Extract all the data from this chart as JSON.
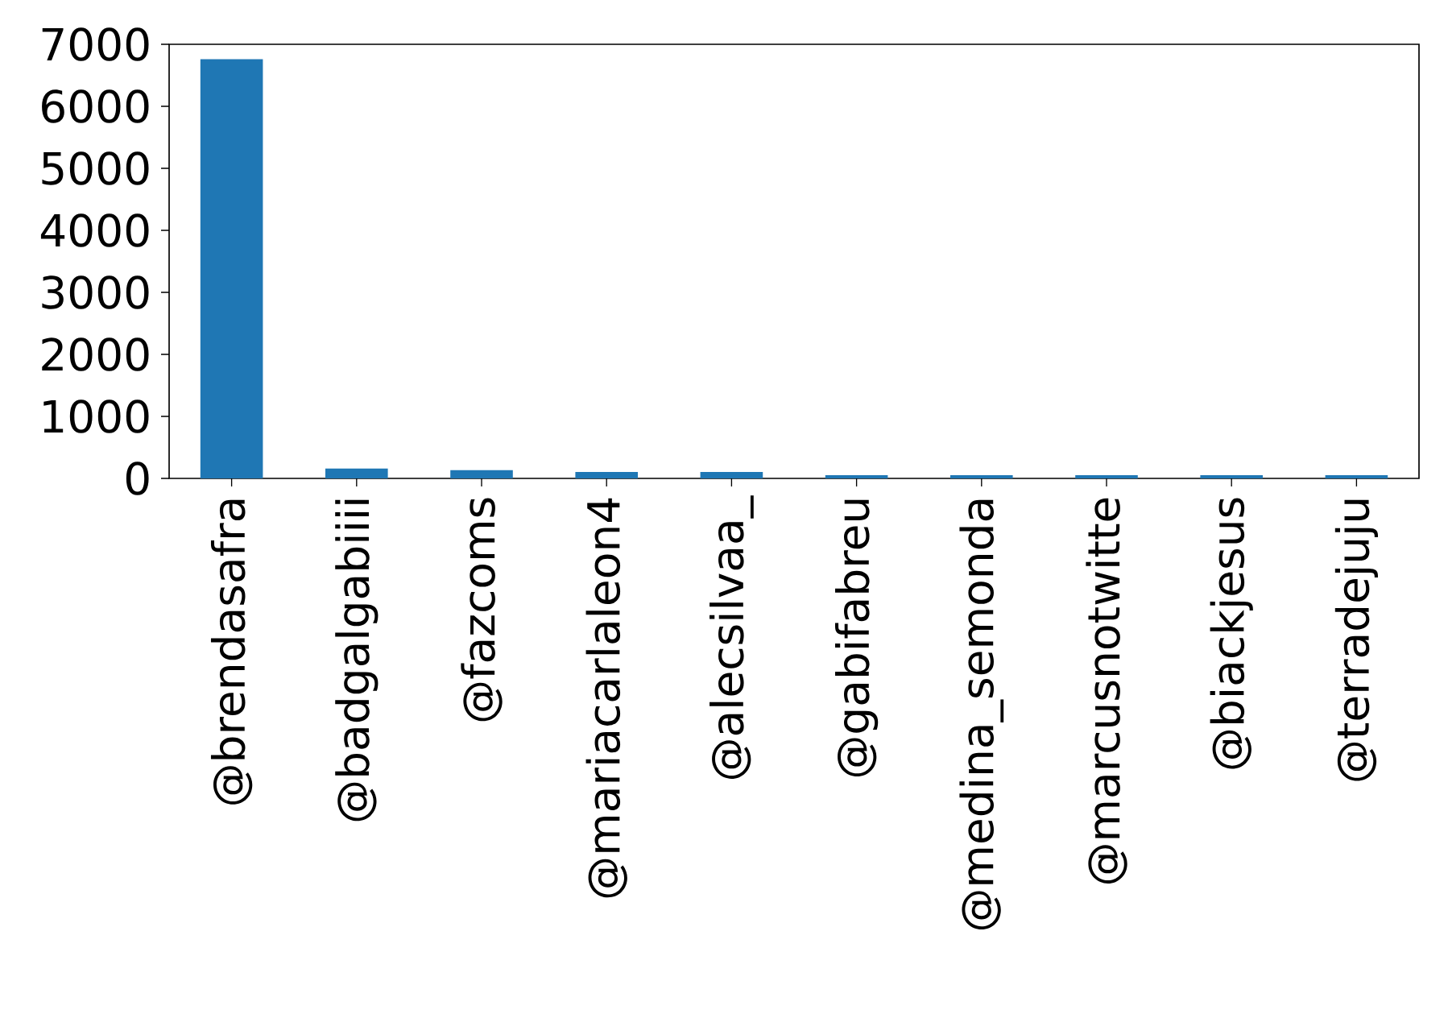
{
  "chart_data": {
    "type": "bar",
    "categories": [
      "@brendasafra",
      "@badgalgabiiii",
      "@fazcoms",
      "@mariacarlaleon4",
      "@alecsilvaa_",
      "@gabifabreu",
      "@medina_semonda",
      "@marcusnotwitte",
      "@biackjesus",
      "@terradejuju"
    ],
    "values": [
      6760,
      158,
      132,
      105,
      105,
      53,
      53,
      53,
      53,
      53
    ],
    "color": "#1f77b4",
    "ylim": [
      0,
      7000
    ],
    "yticks": [
      0,
      1000,
      2000,
      3000,
      4000,
      5000,
      6000,
      7000
    ]
  }
}
